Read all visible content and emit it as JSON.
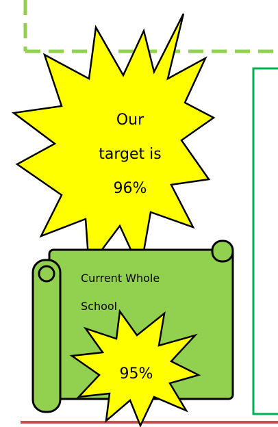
{
  "starburst": {
    "lines": [
      "Our",
      "target is",
      "96%"
    ]
  },
  "scroll": {
    "lines": [
      "Current Whole",
      "School"
    ]
  },
  "badge": {
    "text": "95%"
  }
}
